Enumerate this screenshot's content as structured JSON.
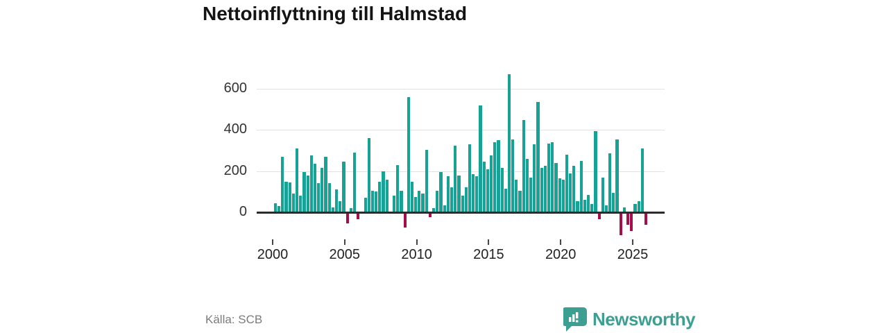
{
  "header": {
    "title": "Nettoinflyttning till Halmstad"
  },
  "footer": {
    "source": "Källa: SCB",
    "brand": "Newsworthy"
  },
  "colors": {
    "accent_teal": "#17a296",
    "accent_red": "#a50e4c",
    "brand_teal": "#3d9e92",
    "grid": "#e2e2e2",
    "axis": "#2b2b2b",
    "text_dark": "#141414",
    "text_gray": "#7b7b7b"
  },
  "chart_data": {
    "type": "bar",
    "title": "Nettoinflyttning till Halmstad",
    "frequency": "quarterly",
    "x_start": "2000 Q1",
    "x_end": "2025 Q4",
    "values": [
      45,
      30,
      270,
      150,
      145,
      90,
      310,
      80,
      195,
      180,
      275,
      235,
      140,
      215,
      270,
      140,
      25,
      110,
      55,
      245,
      -50,
      20,
      290,
      -30,
      5,
      70,
      360,
      105,
      100,
      150,
      200,
      160,
      0,
      80,
      230,
      105,
      -70,
      560,
      150,
      75,
      105,
      90,
      305,
      -20,
      20,
      105,
      195,
      35,
      175,
      120,
      325,
      180,
      80,
      120,
      330,
      185,
      175,
      520,
      245,
      210,
      275,
      340,
      350,
      215,
      115,
      670,
      355,
      160,
      105,
      450,
      260,
      170,
      330,
      535,
      215,
      225,
      335,
      340,
      240,
      165,
      160,
      280,
      190,
      225,
      55,
      250,
      60,
      85,
      40,
      395,
      -30,
      170,
      35,
      285,
      95,
      355,
      -105,
      25,
      -55,
      -85,
      40,
      55,
      310,
      -55
    ],
    "x_tick_labels": [
      "2000",
      "2005",
      "2010",
      "2015",
      "2020",
      "2025"
    ],
    "y_ticks": [
      0,
      200,
      400,
      600
    ],
    "ylim": [
      -130,
      700
    ],
    "grid": "horizontal",
    "legend": "none",
    "bar_colors": {
      "positive": "#17a296",
      "negative": "#a50e4c"
    },
    "source": "Källa: SCB"
  }
}
